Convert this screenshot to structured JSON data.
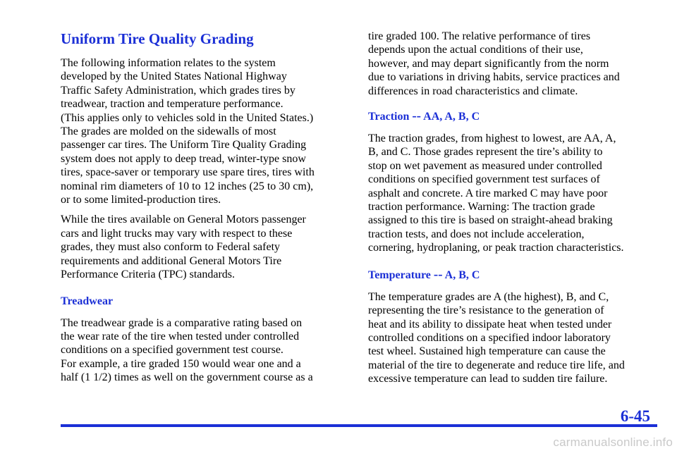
{
  "left": {
    "title": "Uniform Tire Quality Grading",
    "p1": "The following information relates to the system\ndeveloped by the United States National Highway\nTraffic Safety Administration, which grades tires by\ntreadwear, traction and temperature performance.\n(This applies only to vehicles sold in the United States.)\nThe grades are molded on the sidewalls of most\npassenger car tires. The Uniform Tire Quality Grading\nsystem does not apply to deep tread, winter‑type snow\ntires, space‑saver or temporary use spare tires, tires with\nnominal rim diameters of 10 to 12 inches (25 to 30 cm),\nor to some limited‑production tires.",
    "p2": "While the tires available on General Motors passenger\ncars and light trucks may vary with respect to these\ngrades, they must also conform to Federal safety\nrequirements and additional General Motors Tire\nPerformance Criteria (TPC) standards.",
    "treadwear_heading": "Treadwear",
    "p3": "The treadwear grade is a comparative rating based on\nthe wear rate of the tire when tested under controlled\nconditions on a specified government test course.\nFor example, a tire graded 150 would wear one and a\nhalf (1 1/2) times as well on the government course as a"
  },
  "right": {
    "p1": "tire graded 100. The relative performance of tires\ndepends upon the actual conditions of their use,\nhowever, and may depart significantly from the norm\ndue to variations in driving habits, service practices and\ndifferences in road characteristics and climate.",
    "traction_heading_a": "Traction ",
    "traction_heading_dash": "--",
    "traction_heading_b": " AA, A, B, C",
    "p2": "The traction grades, from highest to lowest, are AA, A,\nB, and C. Those grades represent the tire’s ability to\nstop on wet pavement as measured under controlled\nconditions on specified government test surfaces of\nasphalt and concrete. A tire marked C may have poor\ntraction performance. Warning: The traction grade\nassigned to this tire is based on straight‑ahead braking\ntraction tests, and does not include acceleration,\ncornering, hydroplaning, or peak traction characteristics.",
    "temp_heading_a": "Temperature ",
    "temp_heading_dash": "--",
    "temp_heading_b": " A, B, C",
    "p3": "The temperature grades are A (the highest), B, and C,\nrepresenting the tire’s resistance to the generation of\nheat and its ability to dissipate heat when tested under\ncontrolled conditions on a specified indoor laboratory\ntest wheel. Sustained high temperature can cause the\nmaterial of the tire to degenerate and reduce tire life, and\nexcessive temperature can lead to sudden tire failure."
  },
  "footer": {
    "page_number": "6-45",
    "watermark": "carmanualsonline.info"
  },
  "colors": {
    "accent": "#1b2fd6"
  }
}
